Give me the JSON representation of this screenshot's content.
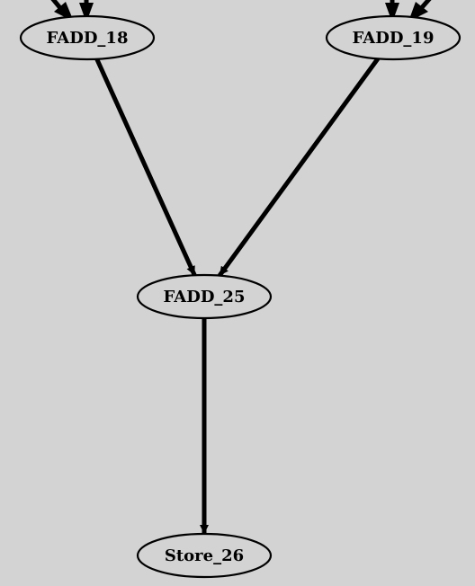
{
  "diagram": {
    "type": "directed-graph",
    "colors": {
      "background": "#d3d3d3",
      "stroke": "#000000",
      "text": "#000000"
    },
    "nodes": [
      {
        "id": "FADD_18",
        "label": "FADD_18"
      },
      {
        "id": "FADD_19",
        "label": "FADD_19"
      },
      {
        "id": "FADD_25",
        "label": "FADD_25"
      },
      {
        "id": "Store_26",
        "label": "Store_26"
      }
    ],
    "edges": [
      {
        "from": "FADD_18",
        "to": "FADD_25"
      },
      {
        "from": "FADD_19",
        "to": "FADD_25"
      },
      {
        "from": "FADD_25",
        "to": "Store_26"
      }
    ]
  }
}
